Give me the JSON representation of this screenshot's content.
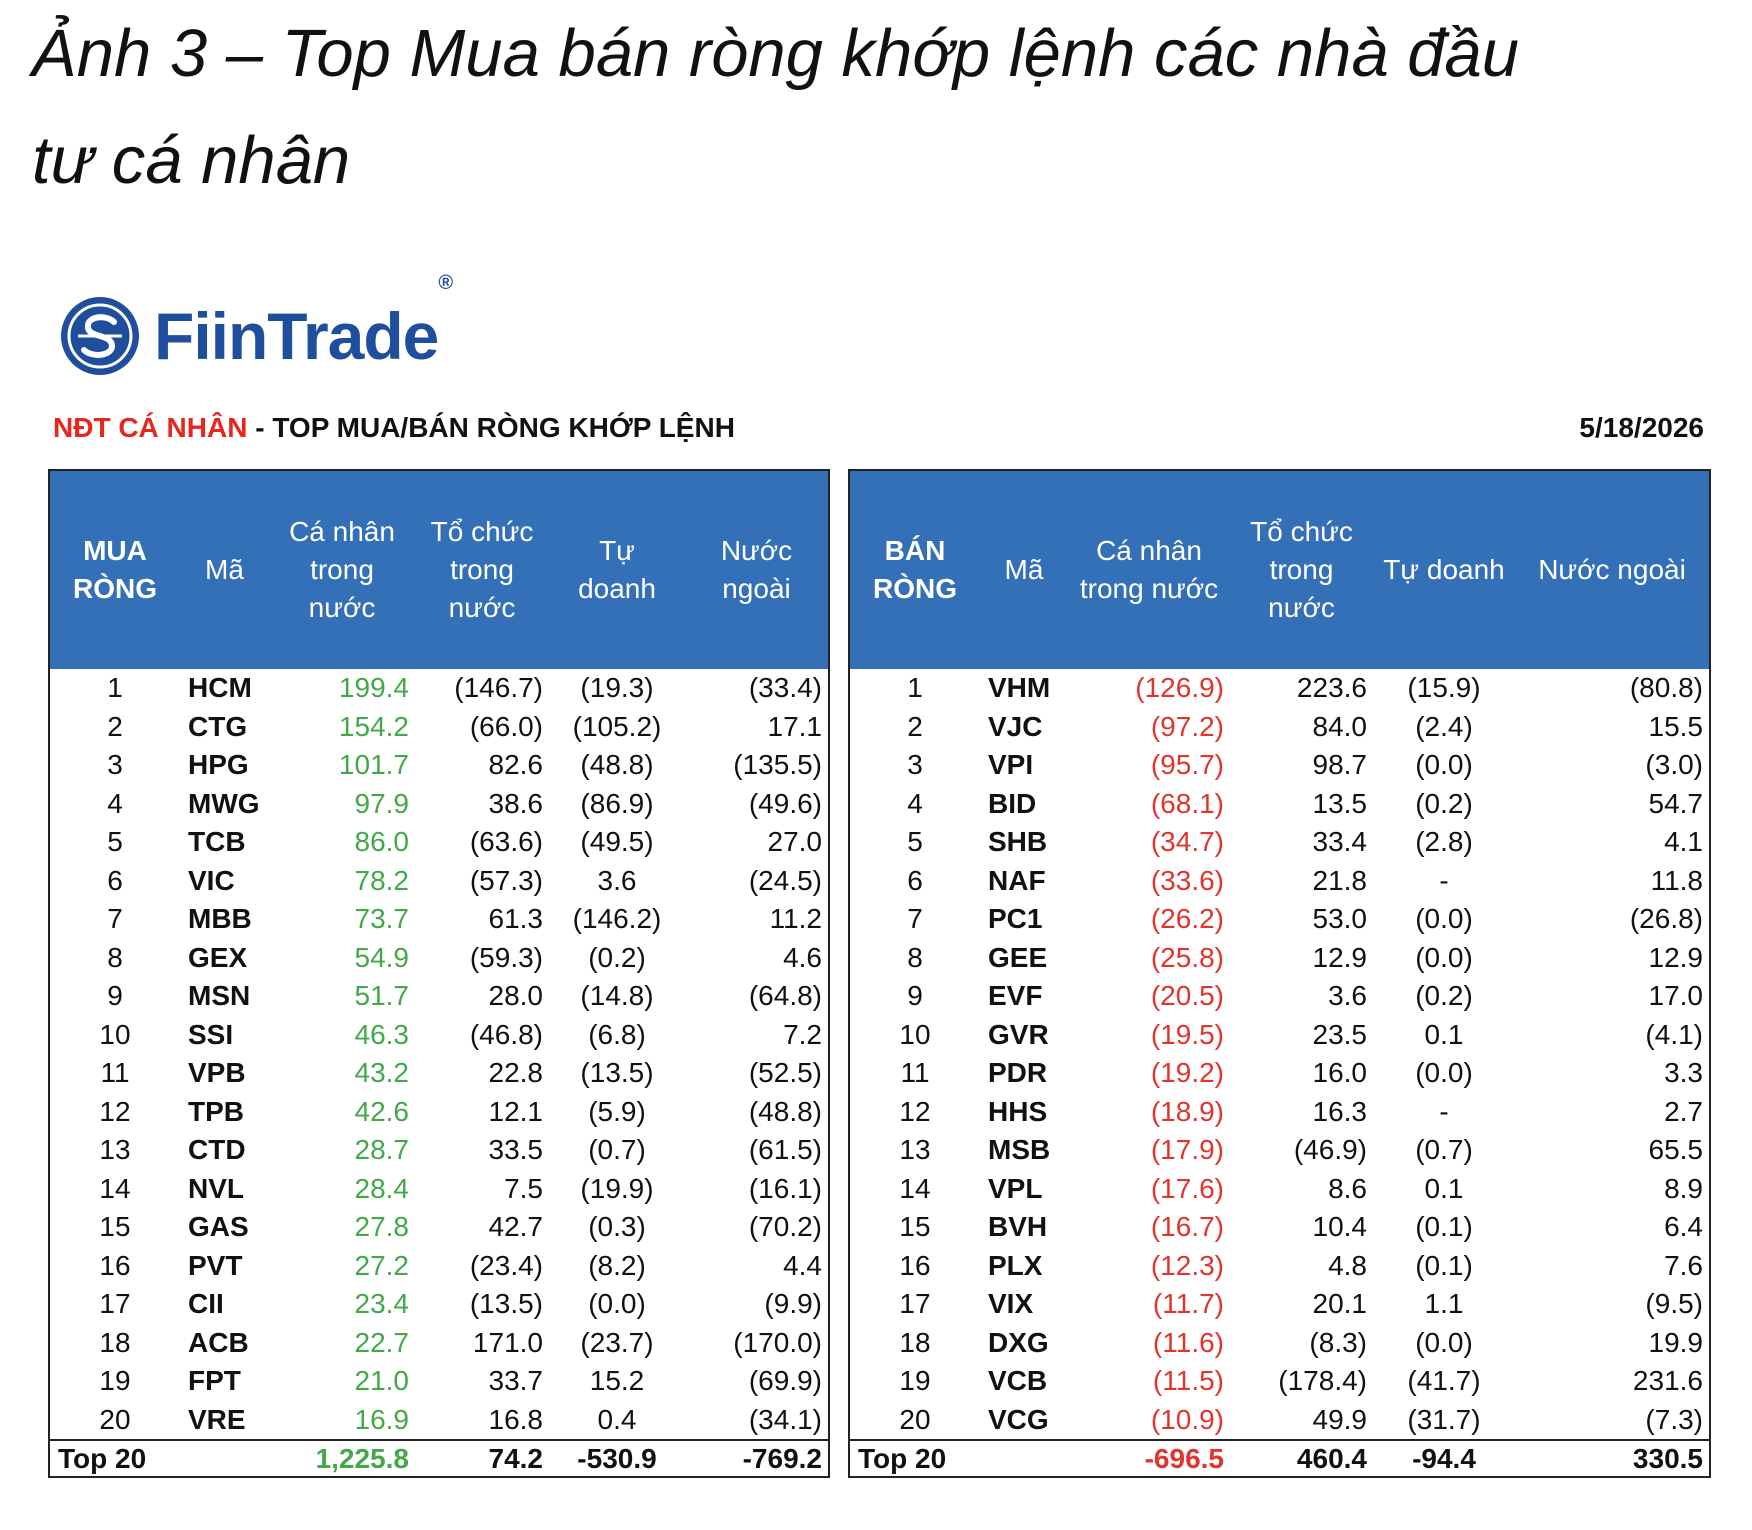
{
  "heading": {
    "lines": [
      "Ảnh 3 – Top Mua bán ròng khớp lệnh các nhà đầu",
      "tư cá nhân"
    ]
  },
  "logo": {
    "brand": "FiinTrade",
    "mark": "®"
  },
  "report": {
    "title_red": "NĐT CÁ NHÂN",
    "title_rest": " - TOP MUA/BÁN RÒNG KHỚP LỆNH",
    "date": "5/18/2026"
  },
  "buy_table": {
    "headers": [
      [
        "MUA",
        "RÒNG"
      ],
      [
        "Mã"
      ],
      [
        "Cá nhân",
        "trong",
        "nước"
      ],
      [
        "Tổ chức",
        "trong",
        "nước"
      ],
      [
        "Tự",
        "doanh"
      ],
      [
        "Nước",
        "ngoài"
      ]
    ],
    "rows": [
      [
        "1",
        "HCM",
        "199.4",
        "(146.7)",
        "(19.3)",
        "(33.4)"
      ],
      [
        "2",
        "CTG",
        "154.2",
        "(66.0)",
        "(105.2)",
        "17.1"
      ],
      [
        "3",
        "HPG",
        "101.7",
        "82.6",
        "(48.8)",
        "(135.5)"
      ],
      [
        "4",
        "MWG",
        "97.9",
        "38.6",
        "(86.9)",
        "(49.6)"
      ],
      [
        "5",
        "TCB",
        "86.0",
        "(63.6)",
        "(49.5)",
        "27.0"
      ],
      [
        "6",
        "VIC",
        "78.2",
        "(57.3)",
        "3.6",
        "(24.5)"
      ],
      [
        "7",
        "MBB",
        "73.7",
        "61.3",
        "(146.2)",
        "11.2"
      ],
      [
        "8",
        "GEX",
        "54.9",
        "(59.3)",
        "(0.2)",
        "4.6"
      ],
      [
        "9",
        "MSN",
        "51.7",
        "28.0",
        "(14.8)",
        "(64.8)"
      ],
      [
        "10",
        "SSI",
        "46.3",
        "(46.8)",
        "(6.8)",
        "7.2"
      ],
      [
        "11",
        "VPB",
        "43.2",
        "22.8",
        "(13.5)",
        "(52.5)"
      ],
      [
        "12",
        "TPB",
        "42.6",
        "12.1",
        "(5.9)",
        "(48.8)"
      ],
      [
        "13",
        "CTD",
        "28.7",
        "33.5",
        "(0.7)",
        "(61.5)"
      ],
      [
        "14",
        "NVL",
        "28.4",
        "7.5",
        "(19.9)",
        "(16.1)"
      ],
      [
        "15",
        "GAS",
        "27.8",
        "42.7",
        "(0.3)",
        "(70.2)"
      ],
      [
        "16",
        "PVT",
        "27.2",
        "(23.4)",
        "(8.2)",
        "4.4"
      ],
      [
        "17",
        "CII",
        "23.4",
        "(13.5)",
        "(0.0)",
        "(9.9)"
      ],
      [
        "18",
        "ACB",
        "22.7",
        "171.0",
        "(23.7)",
        "(170.0)"
      ],
      [
        "19",
        "FPT",
        "21.0",
        "33.7",
        "15.2",
        "(69.9)"
      ],
      [
        "20",
        "VRE",
        "16.9",
        "16.8",
        "0.4",
        "(34.1)"
      ]
    ],
    "total": [
      "Top 20",
      "1,225.8",
      "74.2",
      "-530.9",
      "-769.2"
    ]
  },
  "sell_table": {
    "headers": [
      [
        "BÁN",
        "RÒNG"
      ],
      [
        "Mã"
      ],
      [
        "Cá nhân",
        "trong nước"
      ],
      [
        "Tổ chức",
        "trong",
        "nước"
      ],
      [
        "Tự doanh"
      ],
      [
        "Nước ngoài"
      ]
    ],
    "rows": [
      [
        "1",
        "VHM",
        "(126.9)",
        "223.6",
        "(15.9)",
        "(80.8)"
      ],
      [
        "2",
        "VJC",
        "(97.2)",
        "84.0",
        "(2.4)",
        "15.5"
      ],
      [
        "3",
        "VPI",
        "(95.7)",
        "98.7",
        "(0.0)",
        "(3.0)"
      ],
      [
        "4",
        "BID",
        "(68.1)",
        "13.5",
        "(0.2)",
        "54.7"
      ],
      [
        "5",
        "SHB",
        "(34.7)",
        "33.4",
        "(2.8)",
        "4.1"
      ],
      [
        "6",
        "NAF",
        "(33.6)",
        "21.8",
        "-",
        "11.8"
      ],
      [
        "7",
        "PC1",
        "(26.2)",
        "53.0",
        "(0.0)",
        "(26.8)"
      ],
      [
        "8",
        "GEE",
        "(25.8)",
        "12.9",
        "(0.0)",
        "12.9"
      ],
      [
        "9",
        "EVF",
        "(20.5)",
        "3.6",
        "(0.2)",
        "17.0"
      ],
      [
        "10",
        "GVR",
        "(19.5)",
        "23.5",
        "0.1",
        "(4.1)"
      ],
      [
        "11",
        "PDR",
        "(19.2)",
        "16.0",
        "(0.0)",
        "3.3"
      ],
      [
        "12",
        "HHS",
        "(18.9)",
        "16.3",
        "-",
        "2.7"
      ],
      [
        "13",
        "MSB",
        "(17.9)",
        "(46.9)",
        "(0.7)",
        "65.5"
      ],
      [
        "14",
        "VPL",
        "(17.6)",
        "8.6",
        "0.1",
        "8.9"
      ],
      [
        "15",
        "BVH",
        "(16.7)",
        "10.4",
        "(0.1)",
        "6.4"
      ],
      [
        "16",
        "PLX",
        "(12.3)",
        "4.8",
        "(0.1)",
        "7.6"
      ],
      [
        "17",
        "VIX",
        "(11.7)",
        "20.1",
        "1.1",
        "(9.5)"
      ],
      [
        "18",
        "DXG",
        "(11.6)",
        "(8.3)",
        "(0.0)",
        "19.9"
      ],
      [
        "19",
        "VCB",
        "(11.5)",
        "(178.4)",
        "(41.7)",
        "231.6"
      ],
      [
        "20",
        "VCG",
        "(10.9)",
        "49.9",
        "(31.7)",
        "(7.3)"
      ]
    ],
    "total": [
      "Top 20",
      "-696.5",
      "460.4",
      "-94.4",
      "330.5"
    ]
  }
}
